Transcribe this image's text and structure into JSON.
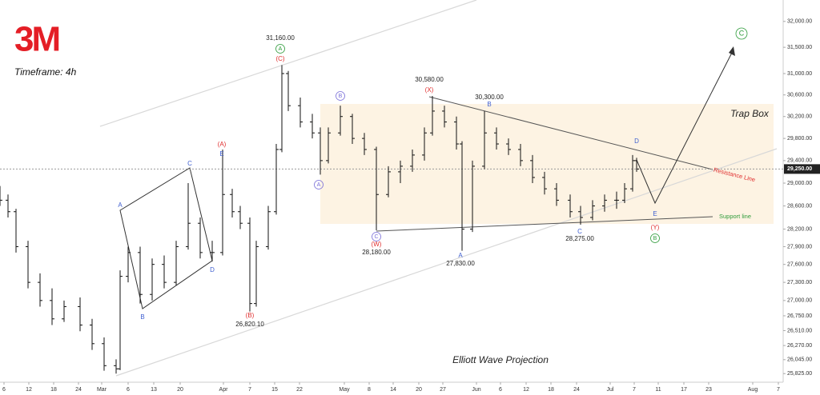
{
  "chart_data": {
    "type": "ohlc",
    "logo": "3M",
    "subtitle": "Timeframe: 4h",
    "color": "#111111",
    "log_scale": true,
    "xlim": [
      0,
      97.8
    ],
    "ylim": [
      25690,
      32420
    ],
    "xticks": [
      {
        "value": 0.5,
        "label": "6"
      },
      {
        "value": 3.6,
        "label": "12"
      },
      {
        "value": 6.7,
        "label": "18"
      },
      {
        "value": 9.8,
        "label": "24"
      },
      {
        "value": 12.7,
        "label": "Mar"
      },
      {
        "value": 16.0,
        "label": "6"
      },
      {
        "value": 19.2,
        "label": "13"
      },
      {
        "value": 22.5,
        "label": "20"
      },
      {
        "value": 27.9,
        "label": "Apr"
      },
      {
        "value": 31.2,
        "label": "7"
      },
      {
        "value": 34.3,
        "label": "15"
      },
      {
        "value": 37.4,
        "label": "22"
      },
      {
        "value": 43.0,
        "label": "May"
      },
      {
        "value": 46.1,
        "label": "8"
      },
      {
        "value": 49.1,
        "label": "14"
      },
      {
        "value": 52.3,
        "label": "20"
      },
      {
        "value": 55.3,
        "label": "27"
      },
      {
        "value": 59.5,
        "label": "Jun"
      },
      {
        "value": 62.5,
        "label": "6"
      },
      {
        "value": 65.7,
        "label": "12"
      },
      {
        "value": 68.8,
        "label": "18"
      },
      {
        "value": 72.0,
        "label": "24"
      },
      {
        "value": 76.2,
        "label": "Jul"
      },
      {
        "value": 79.2,
        "label": "7"
      },
      {
        "value": 82.2,
        "label": "11"
      },
      {
        "value": 85.4,
        "label": "17"
      },
      {
        "value": 88.5,
        "label": "23"
      },
      {
        "value": 94.0,
        "label": "Aug"
      },
      {
        "value": 97.2,
        "label": "7"
      }
    ],
    "yticks": [
      {
        "value": 32000,
        "label": "32,000.00"
      },
      {
        "value": 31500,
        "label": "31,500.00"
      },
      {
        "value": 31000,
        "label": "31,000.00"
      },
      {
        "value": 30600,
        "label": "30,600.00"
      },
      {
        "value": 30200,
        "label": "30,200.00"
      },
      {
        "value": 29800,
        "label": "29,800.00"
      },
      {
        "value": 29400,
        "label": "29,400.00"
      },
      {
        "value": 29000,
        "label": "29,000.00"
      },
      {
        "value": 28600,
        "label": "28,600.00"
      },
      {
        "value": 28200,
        "label": "28,200.00"
      },
      {
        "value": 27900,
        "label": "27,900.00"
      },
      {
        "value": 27600,
        "label": "27,600.00"
      },
      {
        "value": 27300,
        "label": "27,300.00"
      },
      {
        "value": 27000,
        "label": "27,000.00"
      },
      {
        "value": 26750,
        "label": "26,750.00"
      },
      {
        "value": 26510,
        "label": "26,510.00"
      },
      {
        "value": 26270,
        "label": "26,270.00"
      },
      {
        "value": 26045,
        "label": "26,045.00"
      },
      {
        "value": 25825,
        "label": "25,825.00"
      }
    ],
    "last_price": {
      "value": 29250,
      "label": "29,250.00"
    },
    "x": [
      0.0,
      1.0,
      2.0,
      3.5,
      5.0,
      6.5,
      8.0,
      10.0,
      11.5,
      13.0,
      14.5,
      15.0,
      16.0,
      17.5,
      19.0,
      20.5,
      22.0,
      23.5,
      25.0,
      26.5,
      27.8,
      29.0,
      30.0,
      31.2,
      32.0,
      33.5,
      34.5,
      35.2,
      36.0,
      37.5,
      39.0,
      40.0,
      41.0,
      42.5,
      44.0,
      45.5,
      47.0,
      48.5,
      50.0,
      51.5,
      53.0,
      54.0,
      55.5,
      57.0,
      57.7,
      59.0,
      60.5,
      62.0,
      63.5,
      65.0,
      66.5,
      68.0,
      69.5,
      71.2,
      72.5,
      74.0,
      75.5,
      77.0,
      78.0,
      79.0,
      79.5
    ],
    "open": [
      28800,
      28700,
      28500,
      27900,
      27300,
      27000,
      26700,
      26900,
      26600,
      26300,
      25950,
      25900,
      27400,
      27800,
      27100,
      27600,
      27300,
      27900,
      28300,
      27800,
      27800,
      28800,
      28500,
      28300,
      26950,
      27900,
      28500,
      29600,
      31000,
      30400,
      30100,
      29900,
      29400,
      29900,
      30200,
      29800,
      29600,
      28800,
      29200,
      29300,
      29500,
      29900,
      30300,
      30100,
      29700,
      28200,
      29300,
      29900,
      29700,
      29600,
      29400,
      29100,
      28900,
      28700,
      28500,
      28400,
      28600,
      28700,
      28700,
      28900,
      29400
    ],
    "high": [
      28950,
      28800,
      28550,
      28000,
      27450,
      27200,
      27000,
      27050,
      26700,
      26400,
      26050,
      27500,
      27900,
      27900,
      27700,
      27750,
      28000,
      29000,
      28400,
      28000,
      29600,
      28900,
      28600,
      28400,
      28000,
      28600,
      29700,
      31160,
      31050,
      30550,
      30250,
      30000,
      30000,
      30400,
      30250,
      29900,
      29650,
      29300,
      29400,
      29600,
      30000,
      30580,
      30400,
      30200,
      29750,
      29400,
      30300,
      30000,
      29800,
      29700,
      29500,
      29200,
      29000,
      28800,
      28600,
      28700,
      28800,
      28850,
      29000,
      29500,
      29450
    ],
    "low": [
      28600,
      28400,
      27800,
      27200,
      26900,
      26600,
      26650,
      26500,
      26200,
      25870,
      25825,
      25880,
      27300,
      26950,
      27000,
      27200,
      27250,
      27850,
      27700,
      27650,
      27750,
      28400,
      28200,
      26820,
      26900,
      27850,
      28450,
      29550,
      30300,
      30000,
      29800,
      29150,
      29350,
      29850,
      29700,
      29500,
      28180,
      28750,
      29000,
      29200,
      29400,
      29850,
      30000,
      29600,
      27830,
      28150,
      29250,
      29600,
      29500,
      29300,
      29000,
      28800,
      28600,
      28400,
      28275,
      28350,
      28500,
      28550,
      28650,
      28850,
      29200
    ],
    "close": [
      28700,
      28500,
      27900,
      27300,
      27000,
      26700,
      26900,
      26600,
      26300,
      25950,
      25900,
      27400,
      27800,
      27100,
      27600,
      27300,
      27900,
      28300,
      27800,
      27800,
      28800,
      28500,
      28300,
      26950,
      27900,
      28500,
      29600,
      31000,
      30400,
      30100,
      29900,
      29400,
      29900,
      30200,
      29800,
      29600,
      28800,
      29200,
      29300,
      29500,
      29900,
      30300,
      30100,
      29700,
      28200,
      29300,
      29900,
      29700,
      29600,
      29400,
      29100,
      28900,
      28700,
      28500,
      28400,
      28600,
      28700,
      28700,
      28900,
      29400,
      29250
    ],
    "annotations": [
      {
        "text": "31,160.00",
        "color": "#222222"
      },
      {
        "text": "A",
        "color": "#2e9b3a"
      },
      {
        "text": "(C)",
        "color": "#e03030"
      },
      {
        "text": "30,580.00",
        "color": "#222222"
      },
      {
        "text": "(X)",
        "color": "#e03030"
      },
      {
        "text": "30,300.00",
        "color": "#222222"
      },
      {
        "text": "B",
        "color": "#3f5fd0"
      },
      {
        "text": "B",
        "color": "#7a6fd8"
      },
      {
        "text": "C",
        "color": "#3f5fd0"
      },
      {
        "text": "(A)",
        "color": "#e03030"
      },
      {
        "text": "E",
        "color": "#3f5fd0"
      },
      {
        "text": "A",
        "color": "#3f5fd0"
      },
      {
        "text": "B",
        "color": "#3f5fd0"
      },
      {
        "text": "D",
        "color": "#3f5fd0"
      },
      {
        "text": "(B)",
        "color": "#e03030"
      },
      {
        "text": "26,820.10",
        "color": "#222222"
      },
      {
        "text": "A",
        "color": "#7a6fd8"
      },
      {
        "text": "C",
        "color": "#7a6fd8"
      },
      {
        "text": "(W)",
        "color": "#e03030"
      },
      {
        "text": "28,180.00",
        "color": "#222222"
      },
      {
        "text": "A",
        "color": "#3f5fd0"
      },
      {
        "text": "27,830.00",
        "color": "#222222"
      },
      {
        "text": "C",
        "color": "#3f5fd0"
      },
      {
        "text": "28,275.00",
        "color": "#222222"
      },
      {
        "text": "D",
        "color": "#3f5fd0"
      },
      {
        "text": "E",
        "color": "#3f5fd0"
      },
      {
        "text": "(Y)",
        "color": "#e03030"
      },
      {
        "text": "B",
        "color": "#2e9b3a"
      },
      {
        "text": "C",
        "color": "#2e9b3a"
      },
      {
        "text": "Trap Box",
        "color": "#222222"
      },
      {
        "text": "Resistance Line",
        "color": "#e03030"
      },
      {
        "text": "Support line",
        "color": "#2e9b3a"
      },
      {
        "text": "Elliott Wave Projection",
        "color": "#222222"
      }
    ]
  }
}
